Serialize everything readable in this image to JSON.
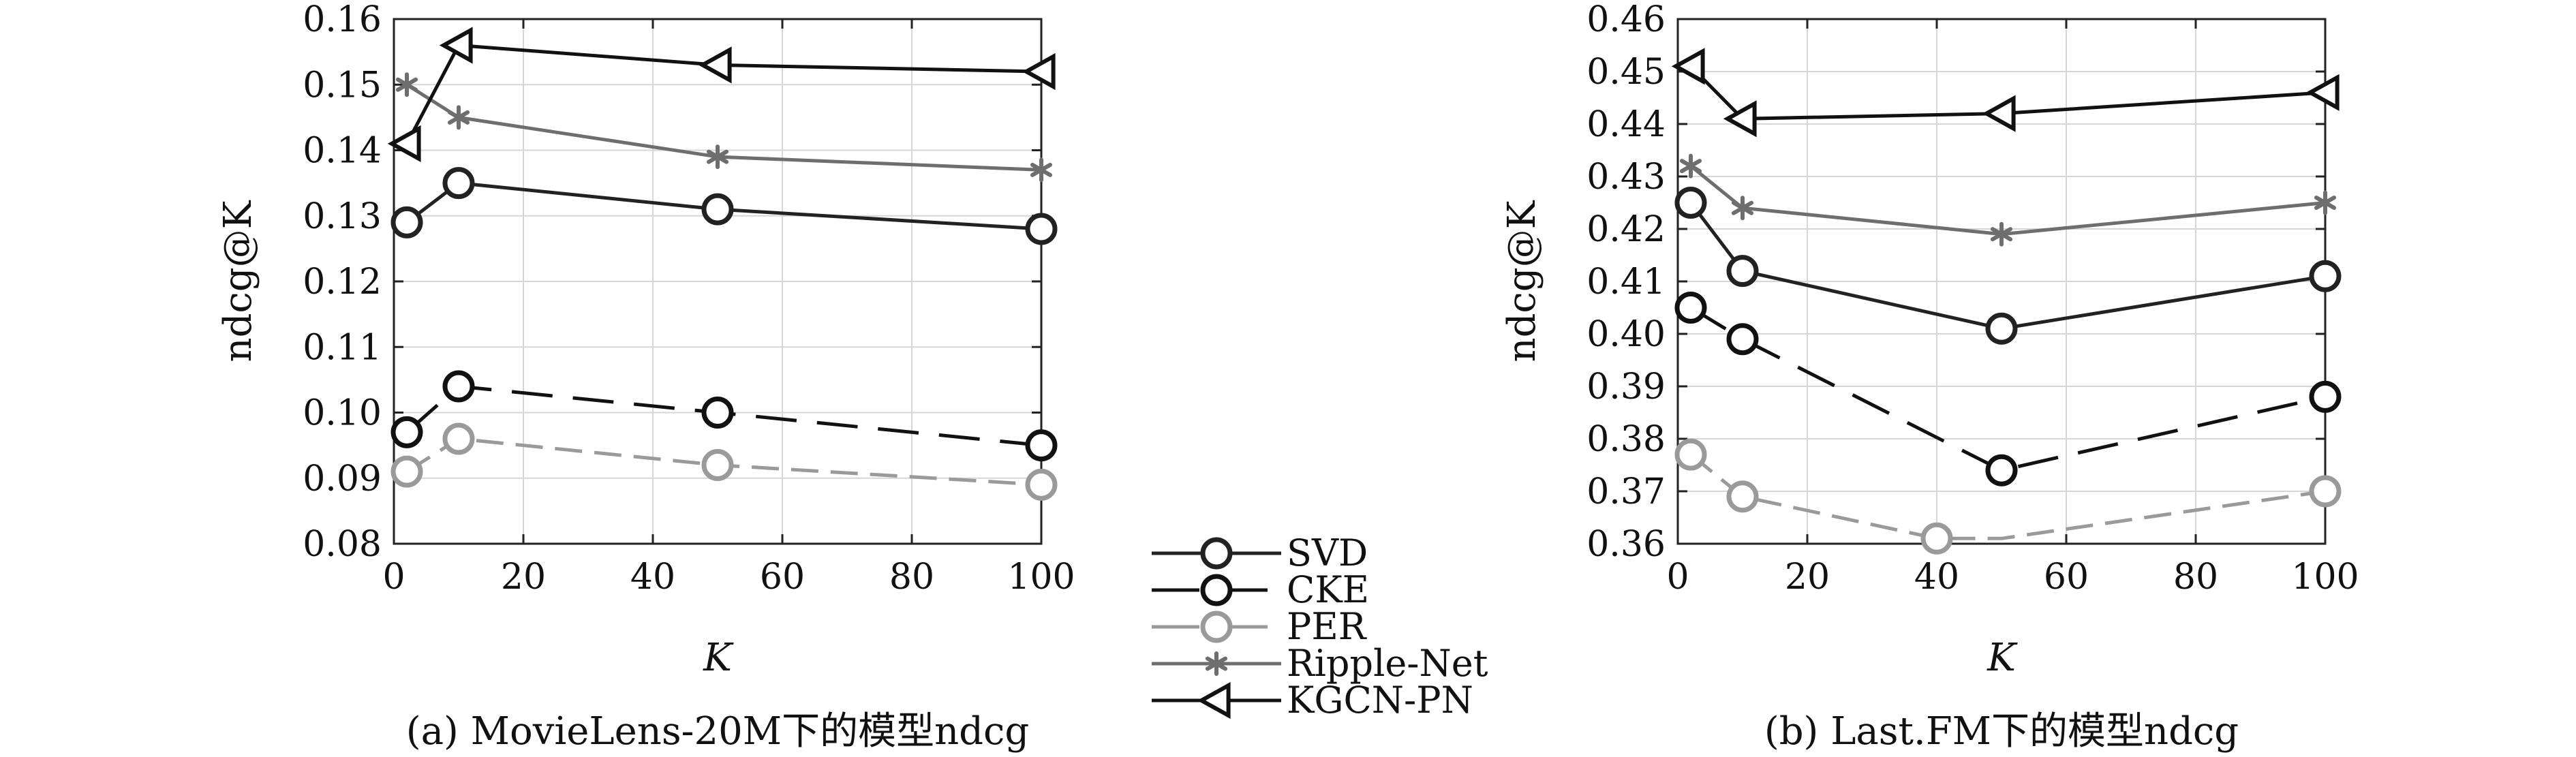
{
  "chart_data": [
    {
      "type": "line",
      "caption": "(a) MovieLens-20M下的模型ndcg",
      "xlabel": "K",
      "ylabel": "ndcg@K",
      "xlim": [
        0,
        100
      ],
      "ylim": [
        0.08,
        0.16
      ],
      "xticks": [
        "0",
        "20",
        "40",
        "60",
        "80",
        "100"
      ],
      "yticks": [
        "0.08",
        "0.09",
        "0.10",
        "0.11",
        "0.12",
        "0.13",
        "0.14",
        "0.15",
        "0.16"
      ],
      "grid": true,
      "series": [
        {
          "name": "SVD",
          "x": [
            2,
            10,
            50,
            100
          ],
          "y": [
            0.129,
            0.135,
            0.131,
            0.128
          ]
        },
        {
          "name": "CKE",
          "x": [
            2,
            10,
            50,
            100
          ],
          "y": [
            0.097,
            0.104,
            0.1,
            0.095
          ]
        },
        {
          "name": "PER",
          "x": [
            2,
            10,
            50,
            100
          ],
          "y": [
            0.091,
            0.096,
            0.092,
            0.089
          ]
        },
        {
          "name": "Ripple-Net",
          "x": [
            2,
            10,
            50,
            100
          ],
          "y": [
            0.15,
            0.145,
            0.139,
            0.137
          ]
        },
        {
          "name": "KGCN-PN",
          "x": [
            2,
            10,
            50,
            100
          ],
          "y": [
            0.141,
            0.156,
            0.153,
            0.152
          ]
        }
      ]
    },
    {
      "type": "line",
      "caption": "(b) Last.FM下的模型ndcg",
      "xlabel": "K",
      "ylabel": "ndcg@K",
      "xlim": [
        0,
        100
      ],
      "ylim": [
        0.36,
        0.46
      ],
      "xticks": [
        "0",
        "20",
        "40",
        "60",
        "80",
        "100"
      ],
      "yticks": [
        "0.36",
        "0.37",
        "0.38",
        "0.39",
        "0.40",
        "0.41",
        "0.42",
        "0.43",
        "0.44",
        "0.45",
        "0.46"
      ],
      "grid": true,
      "series": [
        {
          "name": "SVD",
          "x": [
            2,
            10,
            50,
            100
          ],
          "y": [
            0.425,
            0.412,
            0.401,
            0.411
          ]
        },
        {
          "name": "CKE",
          "x": [
            2,
            10,
            50,
            100
          ],
          "y": [
            0.405,
            0.399,
            0.374,
            0.388
          ]
        },
        {
          "name": "PER",
          "x": [
            2,
            10,
            40,
            50,
            100
          ],
          "y": [
            0.377,
            0.369,
            0.361,
            0.361,
            0.37
          ],
          "markers": [
            true,
            true,
            true,
            false,
            true
          ]
        },
        {
          "name": "Ripple-Net",
          "x": [
            2,
            10,
            50,
            100
          ],
          "y": [
            0.432,
            0.424,
            0.419,
            0.425
          ]
        },
        {
          "name": "KGCN-PN",
          "x": [
            2,
            10,
            50,
            100
          ],
          "y": [
            0.451,
            0.441,
            0.442,
            0.446
          ]
        }
      ]
    }
  ],
  "legend": {
    "placement": "bottom-center",
    "items": [
      "SVD",
      "CKE",
      "PER",
      "Ripple-Net",
      "KGCN-PN"
    ]
  },
  "styles": {
    "SVD": {
      "color": "#222222",
      "dash": "",
      "marker": "circle"
    },
    "CKE": {
      "color": "#111111",
      "dash": "60 30",
      "marker": "circle"
    },
    "PER": {
      "color": "#9a9a9a",
      "dash": "40 18",
      "marker": "circle"
    },
    "Ripple-Net": {
      "color": "#6e6e6e",
      "dash": "",
      "marker": "asterisk"
    },
    "KGCN-PN": {
      "color": "#111111",
      "dash": "",
      "marker": "triangle-left"
    }
  }
}
